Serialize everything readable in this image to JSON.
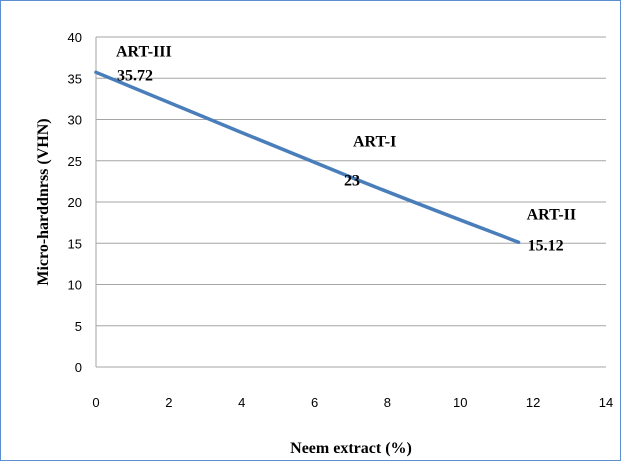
{
  "chart_data": {
    "type": "line",
    "title": "",
    "xlabel": "Neem extract (%)",
    "ylabel": "Micro-harddnrss (VHN)",
    "xlim": [
      0,
      14
    ],
    "ylim": [
      0,
      40
    ],
    "x_ticks": [
      0,
      2,
      4,
      6,
      8,
      10,
      12,
      14
    ],
    "y_ticks": [
      0,
      5,
      10,
      15,
      20,
      25,
      30,
      35,
      40
    ],
    "x_tick_labels": [
      "0",
      "2",
      "4",
      "6",
      "8",
      "10",
      "12",
      "14"
    ],
    "y_tick_labels": [
      "0",
      "5",
      "10",
      "15",
      "20",
      "25",
      "30",
      "35",
      "40"
    ],
    "grid": "horizontal",
    "legend": "none",
    "line_color": "#4a7ebb",
    "series": [
      {
        "x": [
          0,
          7,
          11.6
        ],
        "y": [
          35.72,
          23,
          15.12
        ]
      }
    ],
    "annotations": [
      {
        "group": "ART-III",
        "value_label": "35.72",
        "x": 0,
        "y": 35.72
      },
      {
        "group": "ART-I",
        "value_label": "23",
        "x": 7,
        "y": 23
      },
      {
        "group": "ART-II",
        "value_label": "15.12",
        "x": 11.6,
        "y": 15.12
      }
    ]
  }
}
